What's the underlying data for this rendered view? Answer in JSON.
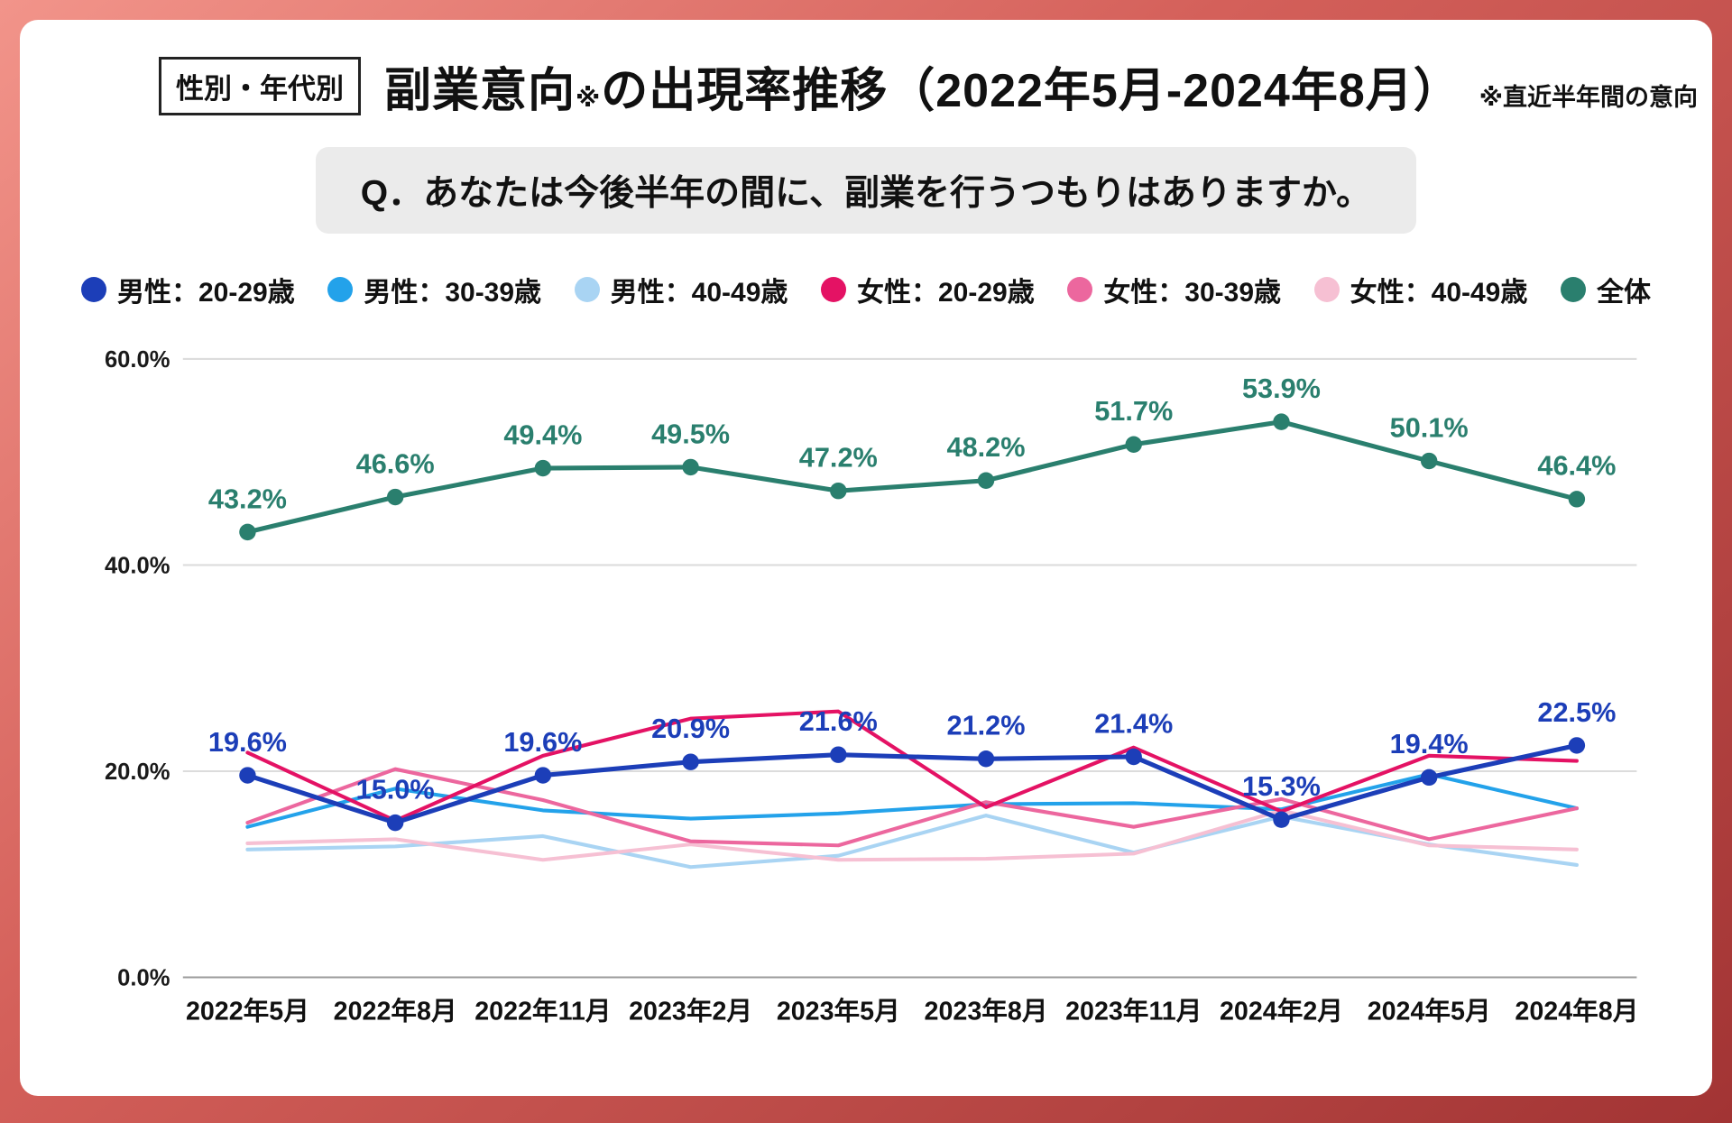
{
  "header": {
    "category_label": "性別・年代別",
    "title_main": "副業意向",
    "title_marker": "※",
    "title_rest": "の出現率推移（2022年5月-2024年8月）",
    "title_note": "※直近半年間の意向"
  },
  "question": {
    "text": "Q．あなたは今後半年の間に、副業を行うつもりはありますか。"
  },
  "chart_data": {
    "type": "line",
    "x": [
      "2022年5月",
      "2022年8月",
      "2022年11月",
      "2023年2月",
      "2023年5月",
      "2023年8月",
      "2023年11月",
      "2024年2月",
      "2024年5月",
      "2024年8月"
    ],
    "ylim": [
      0,
      60
    ],
    "y_tick_values": [
      0,
      20,
      40,
      60
    ],
    "y_tick_labels": [
      "0.0%",
      "20.0%",
      "40.0%",
      "60.0%"
    ],
    "grid": "horizontal",
    "legend_position": "top",
    "series": [
      {
        "name": "男性：20-29歳",
        "color": "#1c3eb8",
        "show_labels": true,
        "values": [
          19.6,
          15.0,
          19.6,
          20.9,
          21.6,
          21.2,
          21.4,
          15.3,
          19.4,
          22.5
        ]
      },
      {
        "name": "男性：30-39歳",
        "color": "#23a2ea",
        "show_labels": false,
        "values": [
          14.6,
          18.3,
          16.2,
          15.4,
          15.9,
          16.8,
          16.9,
          16.3,
          19.7,
          16.4
        ]
      },
      {
        "name": "男性：40-49歳",
        "color": "#a9d4f3",
        "show_labels": false,
        "values": [
          12.4,
          12.7,
          13.7,
          10.7,
          11.8,
          15.7,
          12.1,
          15.6,
          12.9,
          10.9
        ]
      },
      {
        "name": "女性：20-29歳",
        "color": "#e41264",
        "show_labels": false,
        "values": [
          21.8,
          15.2,
          21.5,
          25.1,
          25.8,
          16.5,
          22.3,
          16.1,
          21.5,
          21.0
        ]
      },
      {
        "name": "女性：30-39歳",
        "color": "#ec679e",
        "show_labels": false,
        "values": [
          15.0,
          20.2,
          17.2,
          13.2,
          12.8,
          17.0,
          14.6,
          17.3,
          13.4,
          16.4
        ]
      },
      {
        "name": "女性：40-49歳",
        "color": "#f6c0d3",
        "show_labels": false,
        "values": [
          13.0,
          13.4,
          11.4,
          12.9,
          11.4,
          11.5,
          12.0,
          16.2,
          12.8,
          12.4
        ]
      },
      {
        "name": "全体",
        "color": "#2a7f6e",
        "show_labels": true,
        "values": [
          43.2,
          46.6,
          49.4,
          49.5,
          47.2,
          48.2,
          51.7,
          53.9,
          50.1,
          46.4
        ]
      }
    ]
  }
}
